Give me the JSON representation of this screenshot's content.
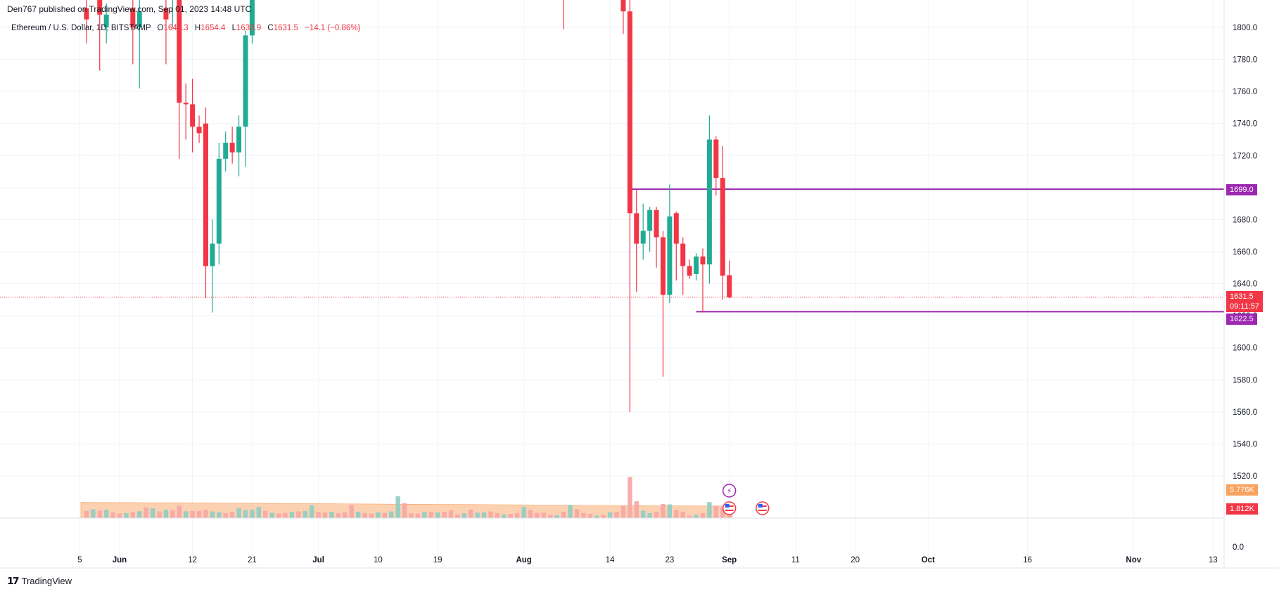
{
  "header": {
    "published": "Den767 published on TradingView.com, Sep 01, 2023 14:48 UTC"
  },
  "legend": {
    "symbol": "Ethereum / U.S. Dollar, 1D, BITSTAMP",
    "o_label": "O",
    "o_value": "1645.3",
    "h_label": "H",
    "h_value": "1654.4",
    "l_label": "L",
    "l_value": "1630.9",
    "c_label": "C",
    "c_value": "1631.5",
    "change": "−14.1 (−0.86%)"
  },
  "price_tags": {
    "resistance": "1699.0",
    "last_price": "1631.5",
    "countdown": "09:11:57",
    "support": "1622.5",
    "volume_ma": "5.776K",
    "volume": "1.812K"
  },
  "footer": {
    "brand": "TradingView"
  },
  "colors": {
    "up": "#22ab94",
    "down": "#f23645",
    "level": "#9c27b0",
    "volume_ma": "#f7a25f",
    "vol_up": "#93cdc4",
    "vol_down": "#f7a9a7"
  },
  "chart_data": {
    "type": "candlestick",
    "title": "Ethereum / U.S. Dollar, 1D, BITSTAMP",
    "y_ticks": [
      1800,
      1780,
      1760,
      1740,
      1720,
      1700,
      1680,
      1660,
      1640,
      1620,
      1600,
      1580,
      1560,
      1540,
      1520
    ],
    "y_tick_labels": [
      "1800.0",
      "1780.0",
      "1760.0",
      "1740.0",
      "1720.0",
      "1700.0",
      "1680.0",
      "1660.0",
      "1640.0",
      "1620.0",
      "1600.0",
      "1580.0",
      "1560.0",
      "1540.0",
      "1520.0"
    ],
    "volume_zero_label": "0.0",
    "x_ticks": [
      {
        "label": "5",
        "date": "2023-05-26"
      },
      {
        "label": "Jun",
        "date": "2023-06-01"
      },
      {
        "label": "12",
        "date": "2023-06-12"
      },
      {
        "label": "21",
        "date": "2023-06-21"
      },
      {
        "label": "Jul",
        "date": "2023-07-01"
      },
      {
        "label": "10",
        "date": "2023-07-10"
      },
      {
        "label": "19",
        "date": "2023-07-19"
      },
      {
        "label": "Aug",
        "date": "2023-08-01"
      },
      {
        "label": "14",
        "date": "2023-08-14"
      },
      {
        "label": "23",
        "date": "2023-08-23"
      },
      {
        "label": "Sep",
        "date": "2023-09-01"
      },
      {
        "label": "11",
        "date": "2023-09-11"
      },
      {
        "label": "20",
        "date": "2023-09-20"
      },
      {
        "label": "Oct",
        "date": "2023-10-01"
      },
      {
        "label": "16",
        "date": "2023-10-16"
      },
      {
        "label": "Nov",
        "date": "2023-11-01"
      },
      {
        "label": "13",
        "date": "2023-11-13"
      }
    ],
    "horizontal_levels": [
      {
        "price": 1699.0,
        "from": "2023-08-17"
      },
      {
        "price": 1622.5,
        "from": "2023-08-27"
      }
    ],
    "last_price": 1631.5,
    "candles": [
      {
        "date": "2023-05-27",
        "o": 1812,
        "h": 1830,
        "l": 1790,
        "c": 1805
      },
      {
        "date": "2023-05-29",
        "o": 1820,
        "h": 1835,
        "l": 1773,
        "c": 1808
      },
      {
        "date": "2023-05-30",
        "o": 1800,
        "h": 1815,
        "l": 1790,
        "c": 1808
      },
      {
        "date": "2023-06-03",
        "o": 1812,
        "h": 1822,
        "l": 1777,
        "c": 1800
      },
      {
        "date": "2023-06-04",
        "o": 1800,
        "h": 1825,
        "l": 1762,
        "c": 1810
      },
      {
        "date": "2023-06-08",
        "o": 1812,
        "h": 1830,
        "l": 1777,
        "c": 1805
      },
      {
        "date": "2023-06-09",
        "o": 1830,
        "h": 1850,
        "l": 1800,
        "c": 1840
      },
      {
        "date": "2023-06-10",
        "o": 1845,
        "h": 1850,
        "l": 1718,
        "c": 1753
      },
      {
        "date": "2023-06-11",
        "o": 1753,
        "h": 1765,
        "l": 1730,
        "c": 1752
      },
      {
        "date": "2023-06-12",
        "o": 1752,
        "h": 1768,
        "l": 1722,
        "c": 1738
      },
      {
        "date": "2023-06-13",
        "o": 1738,
        "h": 1745,
        "l": 1728,
        "c": 1734
      },
      {
        "date": "2023-06-14",
        "o": 1740,
        "h": 1750,
        "l": 1631,
        "c": 1651
      },
      {
        "date": "2023-06-15",
        "o": 1651,
        "h": 1680,
        "l": 1622,
        "c": 1665
      },
      {
        "date": "2023-06-16",
        "o": 1665,
        "h": 1728,
        "l": 1652,
        "c": 1718
      },
      {
        "date": "2023-06-17",
        "o": 1718,
        "h": 1735,
        "l": 1710,
        "c": 1728
      },
      {
        "date": "2023-06-18",
        "o": 1728,
        "h": 1738,
        "l": 1715,
        "c": 1722
      },
      {
        "date": "2023-06-19",
        "o": 1722,
        "h": 1745,
        "l": 1707,
        "c": 1738
      },
      {
        "date": "2023-06-20",
        "o": 1738,
        "h": 1798,
        "l": 1713,
        "c": 1795
      },
      {
        "date": "2023-06-21",
        "o": 1795,
        "h": 1895,
        "l": 1790,
        "c": 1880
      },
      {
        "date": "2023-08-07",
        "o": 1830,
        "h": 1840,
        "l": 1799,
        "c": 1825
      },
      {
        "date": "2023-08-16",
        "o": 1830,
        "h": 1840,
        "l": 1796,
        "c": 1810
      },
      {
        "date": "2023-08-17",
        "o": 1810,
        "h": 1820,
        "l": 1560,
        "c": 1684
      },
      {
        "date": "2023-08-18",
        "o": 1684,
        "h": 1699,
        "l": 1635,
        "c": 1665
      },
      {
        "date": "2023-08-19",
        "o": 1665,
        "h": 1690,
        "l": 1655,
        "c": 1673
      },
      {
        "date": "2023-08-20",
        "o": 1673,
        "h": 1688,
        "l": 1660,
        "c": 1686
      },
      {
        "date": "2023-08-21",
        "o": 1686,
        "h": 1688,
        "l": 1650,
        "c": 1669
      },
      {
        "date": "2023-08-22",
        "o": 1669,
        "h": 1673,
        "l": 1582,
        "c": 1633
      },
      {
        "date": "2023-08-23",
        "o": 1633,
        "h": 1702,
        "l": 1628,
        "c": 1682
      },
      {
        "date": "2023-08-24",
        "o": 1684,
        "h": 1685,
        "l": 1642,
        "c": 1665
      },
      {
        "date": "2023-08-25",
        "o": 1665,
        "h": 1669,
        "l": 1633,
        "c": 1651
      },
      {
        "date": "2023-08-26",
        "o": 1651,
        "h": 1655,
        "l": 1643,
        "c": 1645
      },
      {
        "date": "2023-08-27",
        "o": 1646,
        "h": 1659,
        "l": 1642,
        "c": 1657
      },
      {
        "date": "2023-08-28",
        "o": 1657,
        "h": 1662,
        "l": 1622,
        "c": 1652
      },
      {
        "date": "2023-08-29",
        "o": 1652,
        "h": 1745,
        "l": 1640,
        "c": 1730
      },
      {
        "date": "2023-08-30",
        "o": 1730,
        "h": 1732,
        "l": 1695,
        "c": 1706
      },
      {
        "date": "2023-08-31",
        "o": 1706,
        "h": 1726,
        "l": 1630,
        "c": 1645
      },
      {
        "date": "2023-09-01",
        "o": 1645.3,
        "h": 1654.4,
        "l": 1630.9,
        "c": 1631.5
      }
    ],
    "volume_series": [
      {
        "date": "2023-05-27",
        "v": 3.5,
        "up": false
      },
      {
        "date": "2023-05-28",
        "v": 4.2,
        "up": true
      },
      {
        "date": "2023-05-29",
        "v": 3.6,
        "up": false
      },
      {
        "date": "2023-05-30",
        "v": 4.0,
        "up": true
      },
      {
        "date": "2023-05-31",
        "v": 2.8,
        "up": false
      },
      {
        "date": "2023-06-01",
        "v": 2.2,
        "up": false
      },
      {
        "date": "2023-06-02",
        "v": 2.4,
        "up": true
      },
      {
        "date": "2023-06-03",
        "v": 2.9,
        "up": false
      },
      {
        "date": "2023-06-04",
        "v": 3.3,
        "up": true
      },
      {
        "date": "2023-06-05",
        "v": 5.1,
        "up": false
      },
      {
        "date": "2023-06-06",
        "v": 4.7,
        "up": true
      },
      {
        "date": "2023-06-07",
        "v": 3.2,
        "up": false
      },
      {
        "date": "2023-06-08",
        "v": 4.0,
        "up": true
      },
      {
        "date": "2023-06-09",
        "v": 3.9,
        "up": false
      },
      {
        "date": "2023-06-10",
        "v": 6.0,
        "up": false
      },
      {
        "date": "2023-06-11",
        "v": 3.3,
        "up": true
      },
      {
        "date": "2023-06-12",
        "v": 3.4,
        "up": false
      },
      {
        "date": "2023-06-13",
        "v": 3.5,
        "up": false
      },
      {
        "date": "2023-06-14",
        "v": 4.1,
        "up": false
      },
      {
        "date": "2023-06-15",
        "v": 3.2,
        "up": true
      },
      {
        "date": "2023-06-16",
        "v": 2.8,
        "up": true
      },
      {
        "date": "2023-06-17",
        "v": 2.4,
        "up": false
      },
      {
        "date": "2023-06-18",
        "v": 3.0,
        "up": false
      },
      {
        "date": "2023-06-19",
        "v": 4.9,
        "up": true
      },
      {
        "date": "2023-06-20",
        "v": 3.9,
        "up": true
      },
      {
        "date": "2023-06-21",
        "v": 4.1,
        "up": true
      },
      {
        "date": "2023-06-22",
        "v": 5.4,
        "up": true
      },
      {
        "date": "2023-06-23",
        "v": 3.5,
        "up": false
      },
      {
        "date": "2023-06-24",
        "v": 2.6,
        "up": true
      },
      {
        "date": "2023-06-25",
        "v": 2.2,
        "up": false
      },
      {
        "date": "2023-06-26",
        "v": 2.5,
        "up": false
      },
      {
        "date": "2023-06-27",
        "v": 3.0,
        "up": true
      },
      {
        "date": "2023-06-28",
        "v": 3.2,
        "up": false
      },
      {
        "date": "2023-06-29",
        "v": 3.5,
        "up": true
      },
      {
        "date": "2023-06-30",
        "v": 6.2,
        "up": true
      },
      {
        "date": "2023-07-01",
        "v": 3.0,
        "up": false
      },
      {
        "date": "2023-07-02",
        "v": 2.6,
        "up": false
      },
      {
        "date": "2023-07-03",
        "v": 3.0,
        "up": true
      },
      {
        "date": "2023-07-04",
        "v": 2.3,
        "up": false
      },
      {
        "date": "2023-07-05",
        "v": 2.8,
        "up": false
      },
      {
        "date": "2023-07-06",
        "v": 6.4,
        "up": false
      },
      {
        "date": "2023-07-07",
        "v": 3.1,
        "up": true
      },
      {
        "date": "2023-07-08",
        "v": 2.4,
        "up": false
      },
      {
        "date": "2023-07-09",
        "v": 2.2,
        "up": false
      },
      {
        "date": "2023-07-10",
        "v": 2.8,
        "up": true
      },
      {
        "date": "2023-07-11",
        "v": 2.5,
        "up": false
      },
      {
        "date": "2023-07-12",
        "v": 3.2,
        "up": true
      },
      {
        "date": "2023-07-13",
        "v": 10.5,
        "up": true
      },
      {
        "date": "2023-07-14",
        "v": 7.2,
        "up": false
      },
      {
        "date": "2023-07-15",
        "v": 2.4,
        "up": false
      },
      {
        "date": "2023-07-16",
        "v": 2.2,
        "up": false
      },
      {
        "date": "2023-07-17",
        "v": 2.9,
        "up": true
      },
      {
        "date": "2023-07-18",
        "v": 3.1,
        "up": false
      },
      {
        "date": "2023-07-19",
        "v": 2.8,
        "up": true
      },
      {
        "date": "2023-07-20",
        "v": 3.0,
        "up": false
      },
      {
        "date": "2023-07-21",
        "v": 3.7,
        "up": false
      },
      {
        "date": "2023-07-22",
        "v": 1.8,
        "up": false
      },
      {
        "date": "2023-07-23",
        "v": 2.3,
        "up": true
      },
      {
        "date": "2023-07-24",
        "v": 4.1,
        "up": false
      },
      {
        "date": "2023-07-25",
        "v": 2.6,
        "up": true
      },
      {
        "date": "2023-07-26",
        "v": 2.8,
        "up": true
      },
      {
        "date": "2023-07-27",
        "v": 3.2,
        "up": false
      },
      {
        "date": "2023-07-28",
        "v": 2.5,
        "up": false
      },
      {
        "date": "2023-07-29",
        "v": 1.8,
        "up": true
      },
      {
        "date": "2023-07-30",
        "v": 2.0,
        "up": false
      },
      {
        "date": "2023-07-31",
        "v": 2.4,
        "up": false
      },
      {
        "date": "2023-08-01",
        "v": 5.4,
        "up": true
      },
      {
        "date": "2023-08-02",
        "v": 3.9,
        "up": false
      },
      {
        "date": "2023-08-03",
        "v": 2.5,
        "up": false
      },
      {
        "date": "2023-08-04",
        "v": 2.7,
        "up": false
      },
      {
        "date": "2023-08-05",
        "v": 1.6,
        "up": false
      },
      {
        "date": "2023-08-06",
        "v": 1.4,
        "up": true
      },
      {
        "date": "2023-08-07",
        "v": 3.1,
        "up": false
      },
      {
        "date": "2023-08-08",
        "v": 6.3,
        "up": true
      },
      {
        "date": "2023-08-09",
        "v": 4.3,
        "up": false
      },
      {
        "date": "2023-08-10",
        "v": 2.4,
        "up": false
      },
      {
        "date": "2023-08-11",
        "v": 2.0,
        "up": false
      },
      {
        "date": "2023-08-12",
        "v": 1.2,
        "up": true
      },
      {
        "date": "2023-08-13",
        "v": 1.4,
        "up": false
      },
      {
        "date": "2023-08-14",
        "v": 2.8,
        "up": true
      },
      {
        "date": "2023-08-15",
        "v": 3.0,
        "up": false
      },
      {
        "date": "2023-08-16",
        "v": 5.8,
        "up": false
      },
      {
        "date": "2023-08-17",
        "v": 19.8,
        "up": false
      },
      {
        "date": "2023-08-18",
        "v": 8.1,
        "up": false
      },
      {
        "date": "2023-08-19",
        "v": 3.6,
        "up": true
      },
      {
        "date": "2023-08-20",
        "v": 2.4,
        "up": true
      },
      {
        "date": "2023-08-21",
        "v": 3.0,
        "up": false
      },
      {
        "date": "2023-08-22",
        "v": 6.8,
        "up": false
      },
      {
        "date": "2023-08-23",
        "v": 6.6,
        "up": true
      },
      {
        "date": "2023-08-24",
        "v": 4.0,
        "up": false
      },
      {
        "date": "2023-08-25",
        "v": 3.0,
        "up": false
      },
      {
        "date": "2023-08-26",
        "v": 1.1,
        "up": false
      },
      {
        "date": "2023-08-27",
        "v": 1.5,
        "up": true
      },
      {
        "date": "2023-08-28",
        "v": 2.4,
        "up": false
      },
      {
        "date": "2023-08-29",
        "v": 7.7,
        "up": true
      },
      {
        "date": "2023-08-30",
        "v": 5.9,
        "up": false
      },
      {
        "date": "2023-08-31",
        "v": 5.2,
        "up": false
      },
      {
        "date": "2023-09-01",
        "v": 1.812,
        "up": false
      }
    ],
    "volume_ma_ends": [
      7.6,
      5.776
    ]
  }
}
